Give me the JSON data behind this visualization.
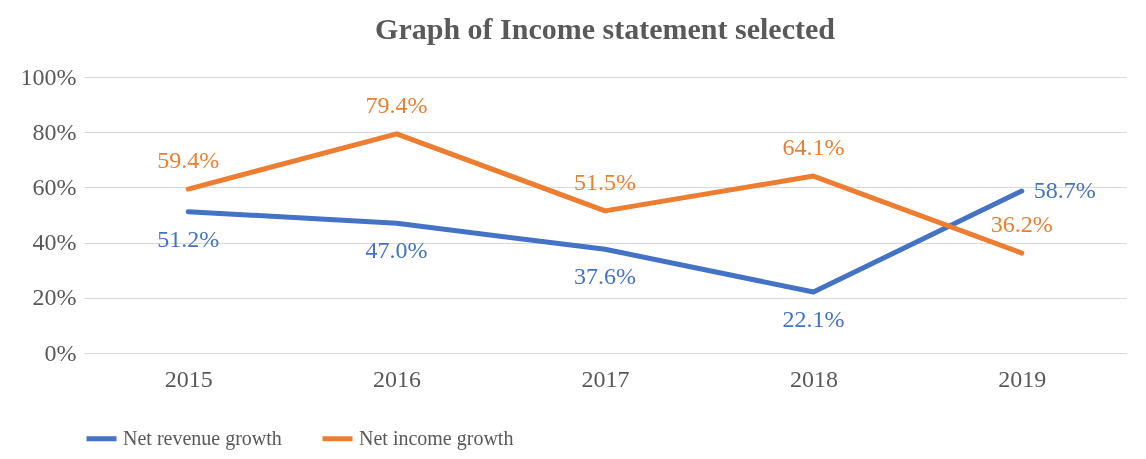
{
  "chart_data": {
    "type": "line",
    "title": "Graph of Income statement selected",
    "categories": [
      "2015",
      "2016",
      "2017",
      "2018",
      "2019"
    ],
    "series": [
      {
        "name": "Net revenue growth",
        "color": "#4472c4",
        "values": [
          51.2,
          47.0,
          37.6,
          22.1,
          58.7
        ],
        "value_labels": [
          "51.2%",
          "47.0%",
          "37.6%",
          "22.1%",
          "58.7%"
        ]
      },
      {
        "name": "Net income growth",
        "color": "#ed7d31",
        "values": [
          59.4,
          79.4,
          51.5,
          64.1,
          36.2
        ],
        "value_labels": [
          "59.4%",
          "79.4%",
          "51.5%",
          "64.1%",
          "36.2%"
        ]
      }
    ],
    "ylim": [
      0,
      100
    ],
    "yticks": [
      {
        "value": 0,
        "label": "0%"
      },
      {
        "value": 20,
        "label": "20%"
      },
      {
        "value": 40,
        "label": "40%"
      },
      {
        "value": 60,
        "label": "60%"
      },
      {
        "value": 80,
        "label": "80%"
      },
      {
        "value": 100,
        "label": "100%"
      }
    ],
    "grid": "y",
    "legend": "bottom",
    "marker": "none",
    "line_style": "solid"
  }
}
